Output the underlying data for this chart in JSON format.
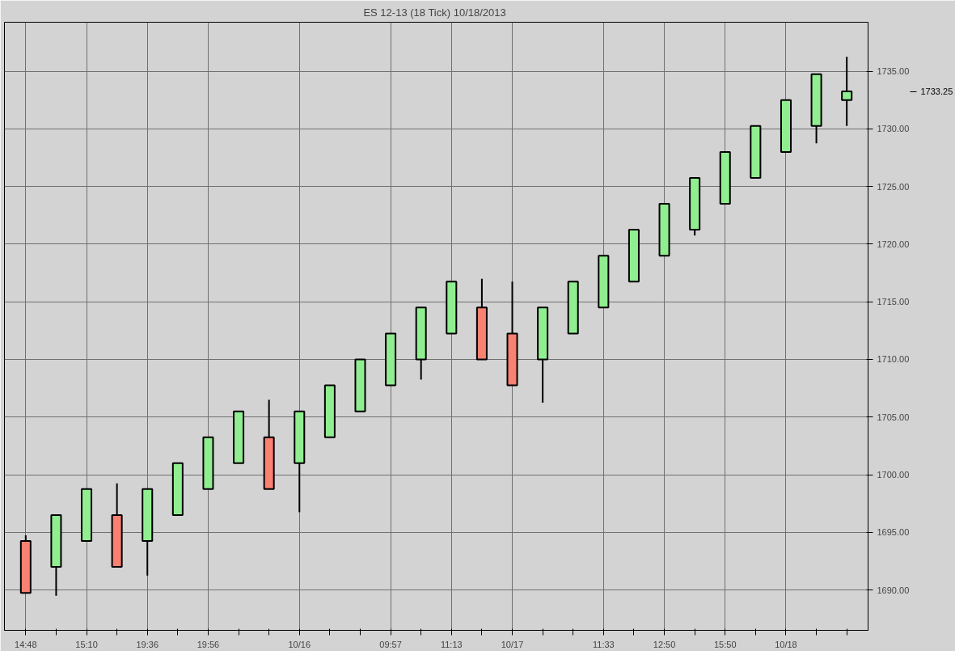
{
  "chart_data": {
    "type": "candlestick",
    "title": "ES 12-13 (18 Tick)  10/18/2013",
    "categories": [
      "14:48",
      null,
      "15:10",
      null,
      "19:36",
      null,
      "19:56",
      null,
      null,
      "10/16",
      null,
      null,
      "09:57",
      null,
      "11:13",
      null,
      "10/17",
      null,
      null,
      "11:33",
      null,
      "12:50",
      null,
      "15:50",
      null,
      "10/18",
      null,
      null
    ],
    "ohlc": [
      [
        1694.25,
        1694.75,
        1689.75,
        1689.75
      ],
      [
        1692,
        1696.5,
        1689.5,
        1696.5
      ],
      [
        1694.25,
        1698.75,
        1694.25,
        1698.75
      ],
      [
        1696.5,
        1699.25,
        1692,
        1692
      ],
      [
        1694.25,
        1698.75,
        1691.25,
        1698.75
      ],
      [
        1696.5,
        1701,
        1696.5,
        1701
      ],
      [
        1698.75,
        1703.25,
        1698.75,
        1703.25
      ],
      [
        1701,
        1705.5,
        1701,
        1705.5
      ],
      [
        1703.25,
        1706.5,
        1698.75,
        1698.75
      ],
      [
        1701,
        1705.5,
        1696.75,
        1705.5
      ],
      [
        1703.25,
        1707.75,
        1703.25,
        1707.75
      ],
      [
        1705.5,
        1710,
        1705.5,
        1710
      ],
      [
        1707.75,
        1712.25,
        1707.75,
        1712.25
      ],
      [
        1710,
        1714.5,
        1708.25,
        1714.5
      ],
      [
        1712.25,
        1716.75,
        1712.25,
        1716.75
      ],
      [
        1714.5,
        1717,
        1710,
        1710
      ],
      [
        1712.25,
        1716.75,
        1707.75,
        1707.75
      ],
      [
        1710,
        1714.5,
        1706.25,
        1714.5
      ],
      [
        1712.25,
        1716.75,
        1712.25,
        1716.75
      ],
      [
        1714.5,
        1719,
        1714.5,
        1719
      ],
      [
        1716.75,
        1721.25,
        1716.75,
        1721.25
      ],
      [
        1719,
        1723.5,
        1719,
        1723.5
      ],
      [
        1721.25,
        1725.75,
        1720.75,
        1725.75
      ],
      [
        1723.5,
        1728,
        1723.5,
        1728
      ],
      [
        1725.75,
        1730.25,
        1725.75,
        1730.25
      ],
      [
        1728,
        1732.5,
        1728,
        1732.5
      ],
      [
        1730.25,
        1734.75,
        1728.75,
        1734.75
      ],
      [
        1732.5,
        1736.25,
        1730.25,
        1733.25
      ]
    ],
    "colors": [
      "#fa8072",
      "#90ee90",
      "#90ee90",
      "#fa8072",
      "#90ee90",
      "#90ee90",
      "#90ee90",
      "#90ee90",
      "#fa8072",
      "#90ee90",
      "#90ee90",
      "#90ee90",
      "#90ee90",
      "#90ee90",
      "#90ee90",
      "#fa8072",
      "#fa8072",
      "#90ee90",
      "#90ee90",
      "#90ee90",
      "#90ee90",
      "#90ee90",
      "#90ee90",
      "#90ee90",
      "#90ee90",
      "#90ee90",
      "#90ee90",
      "#90ee90"
    ],
    "ylim": [
      1686.5,
      1739.25
    ],
    "yticks": [
      {
        "value": 1690,
        "label": "1690.00"
      },
      {
        "value": 1695,
        "label": "1695.00"
      },
      {
        "value": 1700,
        "label": "1700.00"
      },
      {
        "value": 1705,
        "label": "1705.00"
      },
      {
        "value": 1710,
        "label": "1710.00"
      },
      {
        "value": 1715,
        "label": "1715.00"
      },
      {
        "value": 1720,
        "label": "1720.00"
      },
      {
        "value": 1725,
        "label": "1725.00"
      },
      {
        "value": 1730,
        "label": "1730.00"
      },
      {
        "value": 1735,
        "label": "1735.00"
      }
    ],
    "annotations": [
      "1733.25"
    ],
    "grid": true
  }
}
